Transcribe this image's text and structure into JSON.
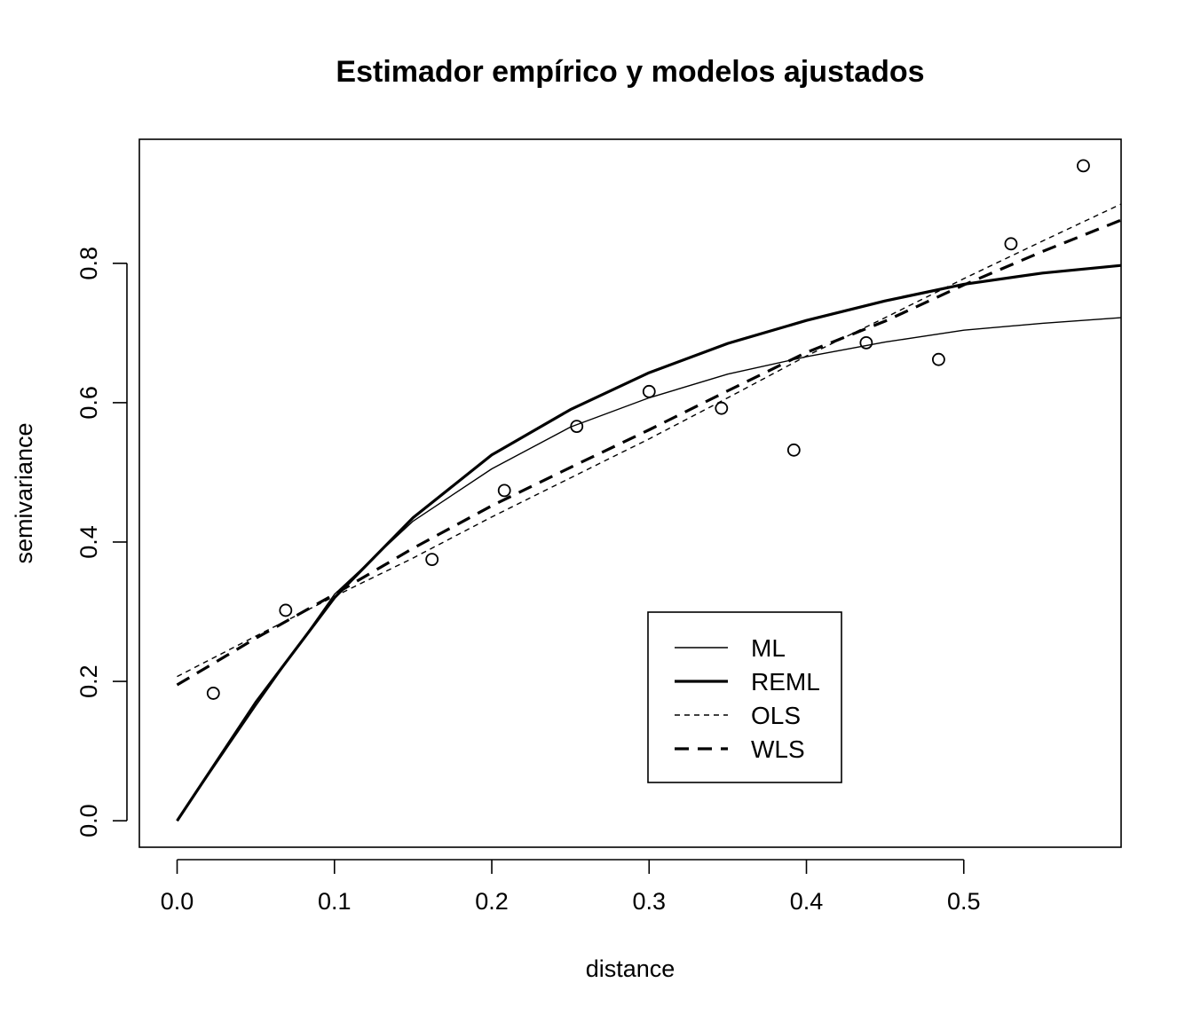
{
  "chart_data": {
    "type": "scatter",
    "title": "Estimador empírico y modelos ajustados",
    "xlabel": "distance",
    "ylabel": "semivariance",
    "xlim": [
      -0.024,
      0.6
    ],
    "ylim": [
      -0.038,
      0.978
    ],
    "x_ticks": [
      "0.0",
      "0.1",
      "0.2",
      "0.3",
      "0.4",
      "0.5"
    ],
    "y_ticks": [
      "0.0",
      "0.2",
      "0.4",
      "0.6",
      "0.8"
    ],
    "grid": false,
    "legend_position": "bottom-center",
    "points": {
      "x": [
        0.023,
        0.069,
        0.162,
        0.208,
        0.254,
        0.3,
        0.346,
        0.392,
        0.438,
        0.484,
        0.53,
        0.576
      ],
      "y": [
        0.183,
        0.302,
        0.375,
        0.474,
        0.566,
        0.616,
        0.592,
        0.532,
        0.686,
        0.662,
        0.828,
        0.94
      ]
    },
    "series": [
      {
        "name": "ML",
        "style": "solid-thin",
        "x": [
          0.0,
          0.05,
          0.1,
          0.15,
          0.2,
          0.25,
          0.3,
          0.35,
          0.4,
          0.45,
          0.5,
          0.55,
          0.6
        ],
        "y": [
          0.0,
          0.165,
          0.325,
          0.43,
          0.505,
          0.565,
          0.607,
          0.641,
          0.666,
          0.687,
          0.704,
          0.714,
          0.722
        ]
      },
      {
        "name": "REML",
        "style": "solid-thick",
        "x": [
          0.0,
          0.05,
          0.1,
          0.15,
          0.2,
          0.25,
          0.3,
          0.35,
          0.4,
          0.45,
          0.5,
          0.55,
          0.6
        ],
        "y": [
          0.0,
          0.17,
          0.32,
          0.435,
          0.525,
          0.59,
          0.643,
          0.685,
          0.718,
          0.746,
          0.77,
          0.786,
          0.797
        ]
      },
      {
        "name": "OLS",
        "style": "dotted-thin",
        "x": [
          0.0,
          0.05,
          0.1,
          0.15,
          0.2,
          0.25,
          0.3,
          0.35,
          0.4,
          0.45,
          0.5,
          0.55,
          0.6
        ],
        "y": [
          0.207,
          0.265,
          0.322,
          0.377,
          0.436,
          0.492,
          0.548,
          0.607,
          0.667,
          0.722,
          0.778,
          0.832,
          0.885
        ]
      },
      {
        "name": "WLS",
        "style": "dashed-thick",
        "x": [
          0.0,
          0.05,
          0.1,
          0.15,
          0.2,
          0.25,
          0.3,
          0.35,
          0.4,
          0.45,
          0.5,
          0.55,
          0.6
        ],
        "y": [
          0.195,
          0.262,
          0.325,
          0.391,
          0.452,
          0.507,
          0.561,
          0.617,
          0.672,
          0.717,
          0.769,
          0.817,
          0.862
        ]
      }
    ]
  }
}
